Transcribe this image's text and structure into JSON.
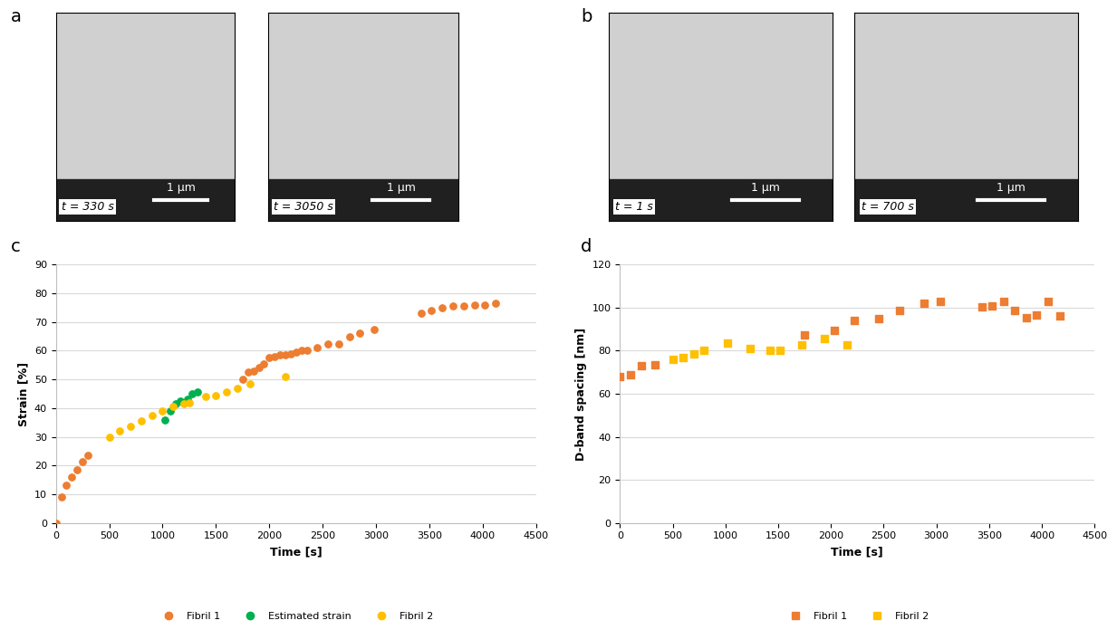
{
  "panel_labels": [
    "a",
    "b",
    "c",
    "d"
  ],
  "images": [
    {
      "panel": "a",
      "frames": [
        {
          "time_label": "t = 330 s",
          "scale_bar": "1 µm"
        },
        {
          "time_label": "t = 3050 s",
          "scale_bar": "1 µm"
        }
      ]
    },
    {
      "panel": "b",
      "frames": [
        {
          "time_label": "t = 1 s",
          "scale_bar": "1 µm"
        },
        {
          "time_label": "t = 700 s",
          "scale_bar": "1 µm"
        }
      ]
    }
  ],
  "chart_data": [
    {
      "type": "scatter",
      "panel": "c",
      "x_label": "Time [s]",
      "y_label": "Strain [%]",
      "xlim": [
        0,
        4500
      ],
      "xticks": [
        0,
        500,
        1000,
        1500,
        2000,
        2500,
        3000,
        3500,
        4000,
        4500
      ],
      "ylim": [
        0,
        90
      ],
      "yticks": [
        0,
        10,
        20,
        30,
        40,
        50,
        60,
        70,
        80,
        90
      ],
      "grid": true,
      "legend": "bottom",
      "marker": "circle",
      "series": [
        {
          "name": "Fibril 1",
          "color": "#ED7D31",
          "x": [
            0,
            50,
            100,
            150,
            200,
            250,
            300,
            1750,
            1800,
            1850,
            1900,
            1950,
            2000,
            2050,
            2100,
            2150,
            2200,
            2250,
            2300,
            2350,
            2450,
            2550,
            2650,
            2750,
            2850,
            2980,
            3420,
            3520,
            3620,
            3720,
            3820,
            3920,
            4020,
            4120
          ],
          "values": [
            0,
            9,
            13,
            16,
            18.5,
            21.5,
            23.5,
            50,
            52.5,
            53,
            54,
            55.5,
            57.5,
            58,
            58.5,
            58.5,
            59,
            59.5,
            60,
            60,
            61,
            62.5,
            62.5,
            65,
            66,
            67.5,
            73,
            74,
            75,
            75.5,
            75.5,
            76,
            76,
            76.5
          ]
        },
        {
          "name": "Estimated strain",
          "color": "#00B050",
          "x": [
            1020,
            1070,
            1120,
            1170,
            1230,
            1280,
            1330
          ],
          "values": [
            36,
            39,
            41.5,
            42.5,
            43,
            45,
            45.5
          ]
        },
        {
          "name": "Fibril 2",
          "color": "#FFC000",
          "x": [
            500,
            600,
            700,
            800,
            900,
            1000,
            1100,
            1200,
            1250,
            1400,
            1500,
            1600,
            1700,
            1820,
            2150
          ],
          "values": [
            30,
            32,
            33.5,
            35.5,
            37.5,
            39,
            40.5,
            41.5,
            42,
            44,
            44.5,
            45.5,
            47,
            48.5,
            51
          ]
        }
      ]
    },
    {
      "type": "scatter",
      "panel": "d",
      "x_label": "Time [s]",
      "y_label": "D-band spacing [nm]",
      "xlim": [
        0,
        4500
      ],
      "xticks": [
        0,
        500,
        1000,
        1500,
        2000,
        2500,
        3000,
        3500,
        4000,
        4500
      ],
      "ylim": [
        0,
        120
      ],
      "yticks": [
        0,
        20,
        40,
        60,
        80,
        100,
        120
      ],
      "grid": true,
      "legend": "bottom",
      "marker": "square",
      "series": [
        {
          "name": "Fibril 1",
          "color": "#ED7D31",
          "x": [
            0,
            100,
            200,
            330,
            1750,
            2030,
            2220,
            2450,
            2650,
            2880,
            3040,
            3430,
            3530,
            3640,
            3740,
            3850,
            3950,
            4060,
            4170
          ],
          "values": [
            68,
            69,
            73,
            73.5,
            87.5,
            89.5,
            94,
            95,
            98.5,
            102,
            103,
            100.5,
            101,
            103,
            98.5,
            95.5,
            96.5,
            103,
            96
          ]
        },
        {
          "name": "Fibril 2",
          "color": "#FFC000",
          "x": [
            500,
            600,
            700,
            800,
            1020,
            1230,
            1420,
            1520,
            1720,
            1940,
            2150
          ],
          "values": [
            76,
            77,
            78.5,
            80,
            83.5,
            81,
            80,
            80,
            82.5,
            85.5,
            82.5
          ]
        }
      ]
    }
  ]
}
